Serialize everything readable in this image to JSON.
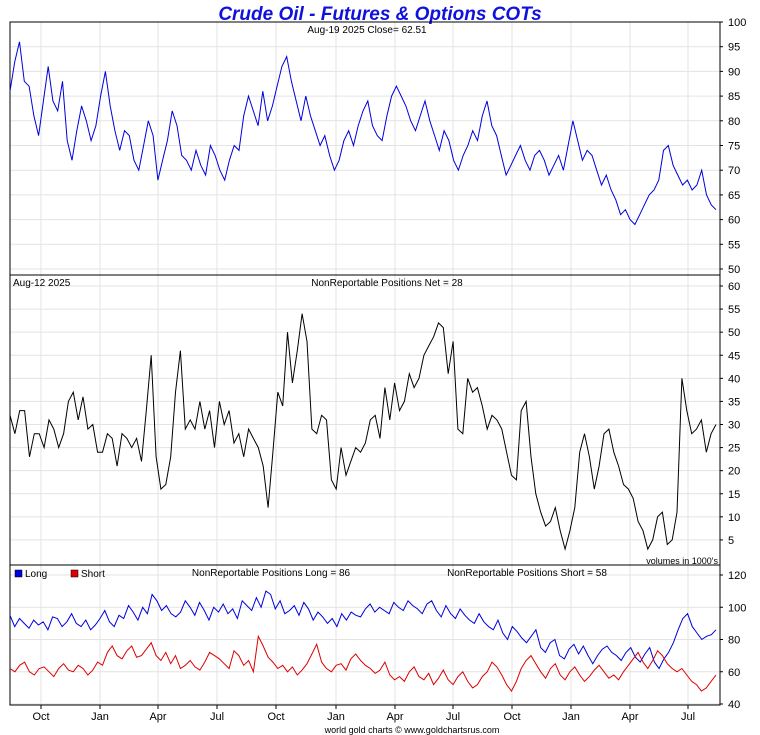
{
  "header": {
    "title": "Crude Oil - Futures & Options COTs",
    "footer": "world gold charts © www.goldchartsrus.com"
  },
  "x_axis": {
    "tick_labels": [
      "Oct",
      "Jan",
      "Apr",
      "Jul",
      "Oct",
      "Jan",
      "Apr",
      "Jul",
      "Oct",
      "Jan",
      "Apr",
      "Jul"
    ]
  },
  "colors": {
    "price": "#0000dd",
    "net": "#000000",
    "long": "#0000dd",
    "short": "#dd0000"
  },
  "chart_data": [
    {
      "type": "line",
      "name": "price",
      "info_left": "Aug-19  2025   Close= 62.51",
      "ylim": [
        50,
        100
      ],
      "yticks": [
        50,
        55,
        60,
        65,
        70,
        75,
        80,
        85,
        90,
        95,
        100
      ],
      "series": [
        {
          "values": [
            86,
            92,
            96,
            88,
            87,
            81,
            77,
            84,
            91,
            84,
            82,
            88,
            76,
            72,
            78,
            83,
            80,
            76,
            79,
            85,
            90,
            83,
            78,
            74,
            78,
            77,
            72,
            70,
            75,
            80,
            77,
            68,
            72,
            76,
            82,
            79,
            73,
            72,
            70,
            74,
            71,
            69,
            75,
            73,
            70,
            68,
            72,
            75,
            74,
            81,
            85,
            82,
            79,
            86,
            80,
            83,
            87,
            91,
            93,
            88,
            84,
            80,
            85,
            81,
            78,
            75,
            77,
            73,
            70,
            72,
            76,
            78,
            75,
            79,
            82,
            84,
            79,
            77,
            76,
            81,
            85,
            87,
            85,
            83,
            80,
            78,
            81,
            84,
            80,
            77,
            74,
            78,
            76,
            72,
            70,
            73,
            75,
            78,
            76,
            81,
            84,
            79,
            77,
            73,
            69,
            71,
            73,
            75,
            72,
            70,
            73,
            74,
            72,
            69,
            71,
            73,
            70,
            75,
            80,
            76,
            72,
            74,
            73,
            70,
            67,
            69,
            66,
            64,
            61,
            62,
            60,
            59,
            61,
            63,
            65,
            66,
            68,
            74,
            75,
            71,
            69,
            67,
            68,
            66,
            67,
            70,
            65,
            63,
            62
          ]
        }
      ]
    },
    {
      "type": "line",
      "name": "net",
      "info_left": "Aug-12  2025",
      "info_center": "NonReportable Positions Net = 28",
      "note": "volumes in 1000's",
      "ylim": [
        0,
        60
      ],
      "yticks": [
        5,
        10,
        15,
        20,
        25,
        30,
        35,
        40,
        45,
        50,
        55,
        60
      ],
      "series": [
        {
          "values": [
            32,
            28,
            33,
            33,
            23,
            28,
            28,
            25,
            31,
            29,
            25,
            28,
            35,
            37,
            31,
            36,
            29,
            30,
            24,
            24,
            28,
            27,
            21,
            28,
            27,
            25,
            27,
            22,
            33,
            45,
            23,
            16,
            17,
            23,
            37,
            46,
            29,
            31,
            29,
            35,
            29,
            33,
            25,
            35,
            30,
            33,
            26,
            28,
            23,
            29,
            27,
            25,
            21,
            12,
            24,
            37,
            34,
            50,
            39,
            46,
            54,
            48,
            29,
            28,
            32,
            31,
            18,
            16,
            25,
            19,
            22,
            25,
            24,
            26,
            31,
            32,
            27,
            38,
            31,
            39,
            33,
            35,
            41,
            38,
            40,
            45,
            47,
            49,
            52,
            51,
            41,
            48,
            29,
            28,
            40,
            37,
            38,
            34,
            29,
            32,
            31,
            29,
            24,
            19,
            18,
            33,
            35,
            23,
            15,
            11,
            8,
            9,
            12,
            7,
            3,
            7,
            12,
            24,
            28,
            23,
            16,
            21,
            28,
            29,
            24,
            21,
            17,
            16,
            14,
            9,
            7,
            3,
            5,
            10,
            11,
            4,
            5,
            11,
            40,
            33,
            28,
            29,
            31,
            24,
            28,
            30
          ]
        }
      ]
    },
    {
      "type": "line",
      "name": "long-short",
      "info_center_left": "NonReportable Positions Long = 86",
      "info_center_right": "NonReportable Positions Short = 58",
      "ylim": [
        40,
        120
      ],
      "yticks": [
        40,
        60,
        80,
        100,
        120
      ],
      "series": [
        {
          "name": "Long",
          "values": [
            95,
            88,
            93,
            90,
            87,
            92,
            89,
            91,
            86,
            94,
            93,
            88,
            91,
            96,
            90,
            88,
            92,
            86,
            89,
            93,
            98,
            91,
            88,
            95,
            93,
            101,
            97,
            92,
            100,
            96,
            108,
            104,
            98,
            101,
            96,
            94,
            97,
            104,
            100,
            95,
            103,
            98,
            92,
            100,
            97,
            102,
            96,
            99,
            93,
            104,
            101,
            98,
            106,
            100,
            110,
            108,
            99,
            104,
            96,
            98,
            101,
            95,
            103,
            99,
            92,
            97,
            94,
            90,
            93,
            88,
            96,
            92,
            97,
            95,
            94,
            99,
            102,
            97,
            100,
            98,
            96,
            103,
            100,
            98,
            104,
            101,
            99,
            96,
            102,
            104,
            98,
            94,
            101,
            96,
            93,
            99,
            95,
            92,
            90,
            96,
            91,
            88,
            86,
            92,
            84,
            80,
            88,
            85,
            81,
            78,
            82,
            86,
            75,
            72,
            78,
            80,
            70,
            68,
            74,
            77,
            71,
            76,
            70,
            65,
            70,
            74,
            76,
            72,
            70,
            67,
            72,
            75,
            69,
            66,
            71,
            75,
            66,
            62,
            68,
            72,
            78,
            86,
            93,
            96,
            88,
            84,
            80,
            82,
            83,
            86
          ]
        },
        {
          "name": "Short",
          "values": [
            62,
            60,
            64,
            66,
            60,
            58,
            62,
            63,
            60,
            57,
            62,
            65,
            61,
            60,
            64,
            62,
            58,
            61,
            66,
            64,
            72,
            76,
            70,
            68,
            73,
            76,
            69,
            70,
            74,
            78,
            70,
            67,
            72,
            65,
            70,
            62,
            64,
            67,
            63,
            61,
            66,
            72,
            70,
            68,
            65,
            62,
            73,
            70,
            64,
            67,
            60,
            82,
            76,
            69,
            66,
            62,
            64,
            60,
            63,
            58,
            61,
            65,
            71,
            77,
            66,
            62,
            60,
            64,
            65,
            61,
            68,
            71,
            67,
            64,
            62,
            59,
            61,
            66,
            58,
            55,
            57,
            54,
            60,
            63,
            57,
            55,
            59,
            52,
            56,
            61,
            55,
            52,
            57,
            60,
            54,
            50,
            52,
            57,
            60,
            66,
            63,
            58,
            52,
            48,
            54,
            62,
            67,
            70,
            65,
            60,
            56,
            62,
            65,
            58,
            55,
            60,
            63,
            58,
            54,
            57,
            61,
            64,
            60,
            56,
            58,
            55,
            60,
            64,
            68,
            72,
            66,
            62,
            67,
            73,
            70,
            65,
            62,
            60,
            62,
            58,
            54,
            52,
            48,
            50,
            54,
            58
          ]
        }
      ]
    }
  ]
}
